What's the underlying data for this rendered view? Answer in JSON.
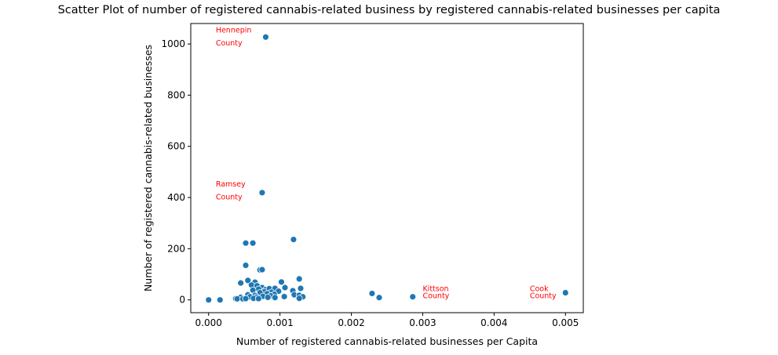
{
  "chart_data": {
    "type": "scatter",
    "title": "Scatter Plot of number of registered cannabis-related business by registered cannabis-related businesses per capita",
    "xlabel": "Number of registered cannabis-related businesses per Capita",
    "ylabel": "Number of registered cannabis-related businesses",
    "xlim": [
      -0.00025,
      0.00525
    ],
    "ylim": [
      -50,
      1080
    ],
    "xticks": [
      0.0,
      0.001,
      0.002,
      0.003,
      0.004,
      0.005
    ],
    "xtick_labels": [
      "0.000",
      "0.001",
      "0.002",
      "0.003",
      "0.004",
      "0.005"
    ],
    "yticks": [
      0,
      200,
      400,
      600,
      800,
      1000
    ],
    "ytick_labels": [
      "0",
      "200",
      "400",
      "600",
      "800",
      "1000"
    ],
    "grid": false,
    "marker_color": "#1f77b4",
    "annotation_color": "#ff0000",
    "points": [
      {
        "x": 0.0008,
        "y": 1027
      },
      {
        "x": 0.00075,
        "y": 419
      },
      {
        "x": 0.00119,
        "y": 236
      },
      {
        "x": 0.00052,
        "y": 222
      },
      {
        "x": 0.00062,
        "y": 222
      },
      {
        "x": 0.00052,
        "y": 135
      },
      {
        "x": 0.00072,
        "y": 117
      },
      {
        "x": 0.00075,
        "y": 118
      },
      {
        "x": 0.00127,
        "y": 82
      },
      {
        "x": 0.00055,
        "y": 76
      },
      {
        "x": 0.00045,
        "y": 66
      },
      {
        "x": 0.00065,
        "y": 69
      },
      {
        "x": 0.00102,
        "y": 70
      },
      {
        "x": 0.0006,
        "y": 58
      },
      {
        "x": 0.00068,
        "y": 55
      },
      {
        "x": 0.00075,
        "y": 48
      },
      {
        "x": 0.0008,
        "y": 40
      },
      {
        "x": 0.00085,
        "y": 44
      },
      {
        "x": 0.00093,
        "y": 45
      },
      {
        "x": 0.00107,
        "y": 48
      },
      {
        "x": 0.00129,
        "y": 45
      },
      {
        "x": 0.0007,
        "y": 42
      },
      {
        "x": 0.00062,
        "y": 38
      },
      {
        "x": 0.00118,
        "y": 36
      },
      {
        "x": 0.00078,
        "y": 32
      },
      {
        "x": 0.00088,
        "y": 30
      },
      {
        "x": 0.00098,
        "y": 34
      },
      {
        "x": 0.00072,
        "y": 28
      },
      {
        "x": 0.00082,
        "y": 24
      },
      {
        "x": 0.00092,
        "y": 22
      },
      {
        "x": 0.00055,
        "y": 20
      },
      {
        "x": 0.00065,
        "y": 18
      },
      {
        "x": 0.0012,
        "y": 20
      },
      {
        "x": 0.00127,
        "y": 18
      },
      {
        "x": 0.00087,
        "y": 16
      },
      {
        "x": 0.00076,
        "y": 14
      },
      {
        "x": 0.00106,
        "y": 13
      },
      {
        "x": 0.00132,
        "y": 12
      },
      {
        "x": 0.00045,
        "y": 10
      },
      {
        "x": 0.00058,
        "y": 12
      },
      {
        "x": 0.00067,
        "y": 11
      },
      {
        "x": 0.00083,
        "y": 10
      },
      {
        "x": 0.00093,
        "y": 9
      },
      {
        "x": 0.00038,
        "y": 5
      },
      {
        "x": 0.0004,
        "y": 4
      },
      {
        "x": 0.00048,
        "y": 4
      },
      {
        "x": 0.00052,
        "y": 5
      },
      {
        "x": 0.00063,
        "y": 6
      },
      {
        "x": 0.0007,
        "y": 5
      },
      {
        "x": 0.00127,
        "y": 6
      },
      {
        "x": 0.00229,
        "y": 25
      },
      {
        "x": 0.00239,
        "y": 9
      },
      {
        "x": 0.00286,
        "y": 12
      },
      {
        "x": 0.005,
        "y": 28
      },
      {
        "x": 0.0,
        "y": 0
      },
      {
        "x": 0.00016,
        "y": 0
      }
    ],
    "annotations": [
      {
        "x": 0.0001,
        "y": 1045,
        "text": "Hennepin"
      },
      {
        "x": 0.0001,
        "y": 995,
        "text": "County"
      },
      {
        "x": 0.0001,
        "y": 443,
        "text": "Ramsey"
      },
      {
        "x": 0.0001,
        "y": 393,
        "text": "County"
      },
      {
        "x": 0.003,
        "y": 34,
        "text": "Kittson"
      },
      {
        "x": 0.003,
        "y": 6,
        "text": "County"
      },
      {
        "x": 0.0045,
        "y": 34,
        "text": "Cook"
      },
      {
        "x": 0.0045,
        "y": 6,
        "text": "County"
      }
    ]
  }
}
